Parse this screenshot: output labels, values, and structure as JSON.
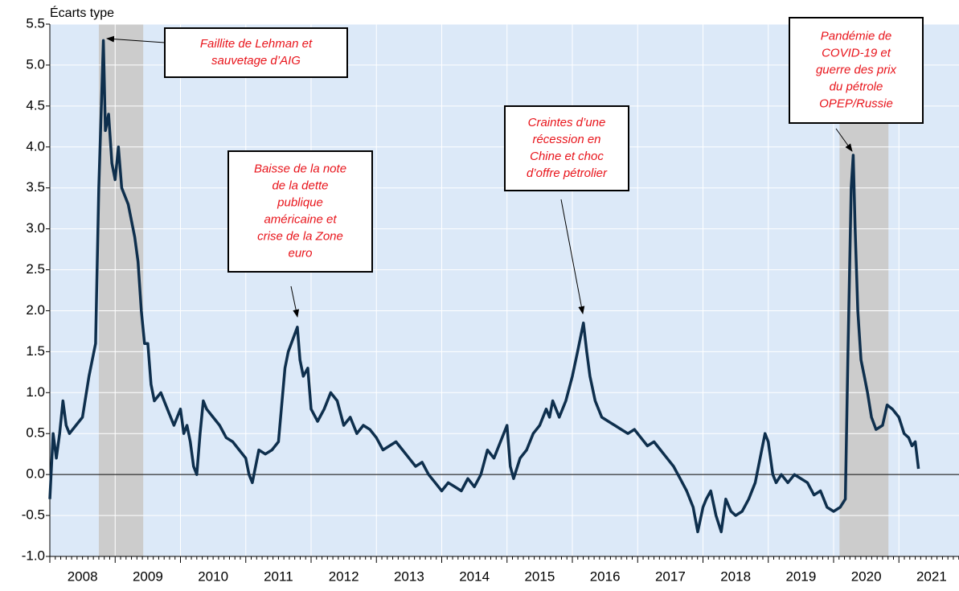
{
  "chart_data": {
    "type": "line",
    "y_axis_label": "Écarts type",
    "color": "#0e2f4d",
    "background": "#dce9f8",
    "shade_color": "#cccccc",
    "shaded_regions": [
      [
        2008.75,
        2009.43
      ],
      [
        2020.09,
        2020.84
      ]
    ],
    "xlim": [
      2008,
      2021.92
    ],
    "xticks": [
      2008,
      2009,
      2010,
      2011,
      2012,
      2013,
      2014,
      2015,
      2016,
      2017,
      2018,
      2019,
      2020,
      2021
    ],
    "ylim": [
      -1,
      5.5
    ],
    "yticks": [
      {
        "value": -1,
        "label": "-1.0"
      },
      -0.5,
      {
        "value": 0,
        "label": "0.0"
      },
      0.5,
      {
        "value": 1,
        "label": "1.0"
      },
      1.5,
      {
        "value": 2,
        "label": "2.0"
      },
      2.5,
      {
        "value": 3,
        "label": "3.0"
      },
      3.5,
      {
        "value": 4,
        "label": "4.0"
      },
      4.5,
      {
        "value": 5,
        "label": "5.0"
      },
      5.5
    ],
    "grid": true,
    "x": [
      2008.0,
      2008.05,
      2008.1,
      2008.15,
      2008.2,
      2008.25,
      2008.3,
      2008.4,
      2008.5,
      2008.6,
      2008.7,
      2008.75,
      2008.82,
      2008.85,
      2008.9,
      2008.95,
      2009.0,
      2009.05,
      2009.1,
      2009.2,
      2009.3,
      2009.35,
      2009.4,
      2009.45,
      2009.5,
      2009.55,
      2009.6,
      2009.7,
      2009.8,
      2009.9,
      2010.0,
      2010.05,
      2010.1,
      2010.15,
      2010.2,
      2010.25,
      2010.3,
      2010.35,
      2010.4,
      2010.5,
      2010.6,
      2010.7,
      2010.8,
      2010.9,
      2011.0,
      2011.05,
      2011.1,
      2011.2,
      2011.3,
      2011.4,
      2011.5,
      2011.6,
      2011.65,
      2011.79,
      2011.83,
      2011.88,
      2011.95,
      2012.0,
      2012.1,
      2012.2,
      2012.3,
      2012.4,
      2012.5,
      2012.6,
      2012.7,
      2012.8,
      2012.9,
      2013.0,
      2013.1,
      2013.2,
      2013.3,
      2013.4,
      2013.5,
      2013.6,
      2013.7,
      2013.8,
      2013.9,
      2014.0,
      2014.1,
      2014.2,
      2014.3,
      2014.4,
      2014.5,
      2014.6,
      2014.7,
      2014.8,
      2014.9,
      2015.0,
      2015.05,
      2015.1,
      2015.2,
      2015.3,
      2015.4,
      2015.5,
      2015.6,
      2015.65,
      2015.7,
      2015.8,
      2015.9,
      2016.0,
      2016.08,
      2016.17,
      2016.22,
      2016.27,
      2016.35,
      2016.45,
      2016.55,
      2016.65,
      2016.75,
      2016.85,
      2016.95,
      2017.05,
      2017.15,
      2017.25,
      2017.35,
      2017.45,
      2017.55,
      2017.65,
      2017.75,
      2017.85,
      2017.92,
      2018.0,
      2018.05,
      2018.12,
      2018.2,
      2018.28,
      2018.35,
      2018.43,
      2018.5,
      2018.6,
      2018.7,
      2018.8,
      2018.9,
      2018.95,
      2019.0,
      2019.07,
      2019.12,
      2019.2,
      2019.3,
      2019.4,
      2019.5,
      2019.6,
      2019.7,
      2019.8,
      2019.9,
      2020.0,
      2020.1,
      2020.18,
      2020.22,
      2020.27,
      2020.3,
      2020.33,
      2020.37,
      2020.42,
      2020.47,
      2020.52,
      2020.58,
      2020.65,
      2020.75,
      2020.82,
      2020.9,
      2021.0,
      2021.08,
      2021.15,
      2021.2,
      2021.25,
      2021.3
    ],
    "values": [
      -0.3,
      0.5,
      0.2,
      0.5,
      0.9,
      0.6,
      0.5,
      0.6,
      0.7,
      1.2,
      1.6,
      3.5,
      5.3,
      4.2,
      4.4,
      3.8,
      3.6,
      4.0,
      3.5,
      3.3,
      2.9,
      2.6,
      2.0,
      1.6,
      1.6,
      1.1,
      0.9,
      1.0,
      0.8,
      0.6,
      0.8,
      0.5,
      0.6,
      0.4,
      0.1,
      0.0,
      0.5,
      0.9,
      0.8,
      0.7,
      0.6,
      0.45,
      0.4,
      0.3,
      0.2,
      0.0,
      -0.1,
      0.3,
      0.25,
      0.3,
      0.4,
      1.3,
      1.5,
      1.8,
      1.4,
      1.2,
      1.3,
      0.8,
      0.65,
      0.8,
      1.0,
      0.9,
      0.6,
      0.7,
      0.5,
      0.6,
      0.55,
      0.45,
      0.3,
      0.35,
      0.4,
      0.3,
      0.2,
      0.1,
      0.15,
      0.0,
      -0.1,
      -0.2,
      -0.1,
      -0.15,
      -0.2,
      -0.05,
      -0.15,
      0.0,
      0.3,
      0.2,
      0.4,
      0.6,
      0.1,
      -0.05,
      0.2,
      0.3,
      0.5,
      0.6,
      0.8,
      0.7,
      0.9,
      0.7,
      0.9,
      1.2,
      1.5,
      1.85,
      1.5,
      1.2,
      0.9,
      0.7,
      0.65,
      0.6,
      0.55,
      0.5,
      0.55,
      0.45,
      0.35,
      0.4,
      0.3,
      0.2,
      0.1,
      -0.05,
      -0.2,
      -0.4,
      -0.7,
      -0.4,
      -0.3,
      -0.2,
      -0.5,
      -0.7,
      -0.3,
      -0.45,
      -0.5,
      -0.45,
      -0.3,
      -0.1,
      0.3,
      0.5,
      0.4,
      0.0,
      -0.1,
      0.0,
      -0.1,
      0.0,
      -0.05,
      -0.1,
      -0.25,
      -0.2,
      -0.4,
      -0.45,
      -0.4,
      -0.3,
      1.5,
      3.5,
      3.9,
      3.0,
      2.0,
      1.4,
      1.2,
      1.0,
      0.7,
      0.55,
      0.6,
      0.85,
      0.8,
      0.7,
      0.5,
      0.45,
      0.35,
      0.4,
      0.07
    ],
    "annotations": [
      {
        "lines": [
          "Faillite de Lehman et",
          "sauvetage d’AIG"
        ]
      },
      {
        "lines": [
          "Baisse de la note",
          "de la dette",
          "publique",
          "américaine et",
          "crise de la Zone",
          "euro"
        ]
      },
      {
        "lines": [
          "Craintes d’une",
          "récession en",
          "Chine et choc",
          "d’offre pétrolier"
        ]
      },
      {
        "lines": [
          "Pandémie de",
          "COVID-19 et",
          "guerre des prix",
          "du pétrole",
          "OPEP/Russie"
        ]
      }
    ]
  }
}
